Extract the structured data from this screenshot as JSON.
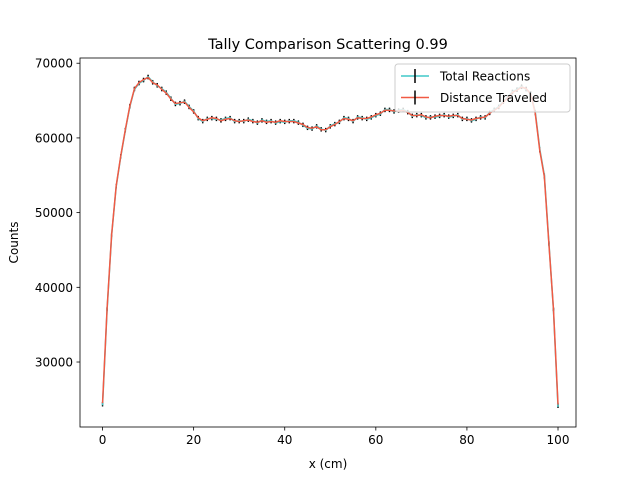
{
  "chart_data": {
    "type": "line",
    "title": "Tally Comparison Scattering 0.99",
    "xlabel": "x (cm)",
    "ylabel": "Counts",
    "xlim": [
      -4.95,
      103.95
    ],
    "ylim": [
      21300,
      70700
    ],
    "xticks": [
      0,
      20,
      40,
      60,
      80,
      100
    ],
    "yticks": [
      30000,
      40000,
      50000,
      60000,
      70000
    ],
    "grid": false,
    "legend_position": "upper right",
    "x": [
      0,
      1,
      2,
      3,
      4,
      5,
      6,
      7,
      8,
      9,
      10,
      11,
      12,
      13,
      14,
      15,
      16,
      17,
      18,
      19,
      20,
      21,
      22,
      23,
      24,
      25,
      26,
      27,
      28,
      29,
      30,
      31,
      32,
      33,
      34,
      35,
      36,
      37,
      38,
      39,
      40,
      41,
      42,
      43,
      44,
      45,
      46,
      47,
      48,
      49,
      50,
      51,
      52,
      53,
      54,
      55,
      56,
      57,
      58,
      59,
      60,
      61,
      62,
      63,
      64,
      65,
      66,
      67,
      68,
      69,
      70,
      71,
      72,
      73,
      74,
      75,
      76,
      77,
      78,
      79,
      80,
      81,
      82,
      83,
      84,
      85,
      86,
      87,
      88,
      89,
      90,
      91,
      92,
      93,
      94,
      95,
      96,
      97,
      98,
      99,
      100
    ],
    "series": [
      {
        "name": "Total Reactions",
        "color": "#40c9c9",
        "values": [
          24200,
          37000,
          47000,
          53500,
          57500,
          61000,
          64200,
          66500,
          67300,
          67700,
          68200,
          67500,
          67000,
          66600,
          66100,
          65300,
          64500,
          64600,
          64900,
          64200,
          63600,
          62600,
          62200,
          62600,
          62600,
          62500,
          62400,
          62600,
          62700,
          62200,
          62300,
          62200,
          62500,
          62300,
          62000,
          62400,
          62200,
          62300,
          62000,
          62200,
          62100,
          62300,
          62300,
          62100,
          61700,
          61300,
          61200,
          61600,
          61200,
          61000,
          61600,
          61900,
          62100,
          62700,
          62600,
          62200,
          62800,
          62700,
          62500,
          62700,
          63000,
          63200,
          63800,
          63800,
          63500,
          63700,
          63800,
          63500,
          62900,
          63100,
          63000,
          62700,
          62800,
          62800,
          62900,
          63100,
          62800,
          62900,
          63100,
          62500,
          62600,
          62300,
          62500,
          62800,
          62700,
          63400,
          63800,
          64200,
          64900,
          65500,
          66200,
          66500,
          66900,
          66500,
          66000,
          63500,
          58500,
          55000,
          46000,
          37000,
          24000
        ],
        "errors": [
          150,
          190,
          220,
          240,
          245,
          250,
          255,
          258,
          260,
          260,
          261,
          260,
          259,
          258,
          257,
          256,
          254,
          254,
          255,
          253,
          252,
          250,
          249,
          250,
          250,
          250,
          250,
          250,
          250,
          249,
          249,
          249,
          250,
          249,
          249,
          250,
          249,
          249,
          249,
          249,
          249,
          249,
          249,
          249,
          248,
          248,
          247,
          248,
          247,
          247,
          248,
          249,
          249,
          250,
          250,
          249,
          251,
          250,
          250,
          250,
          251,
          251,
          253,
          253,
          252,
          252,
          253,
          252,
          251,
          251,
          251,
          250,
          251,
          251,
          251,
          251,
          251,
          251,
          251,
          250,
          250,
          249,
          250,
          251,
          250,
          252,
          253,
          253,
          255,
          256,
          257,
          258,
          259,
          258,
          257,
          252,
          242,
          235,
          215,
          192,
          155
        ]
      },
      {
        "name": "Distance Traveled",
        "color": "#f15a44",
        "values": [
          24500,
          37200,
          47100,
          53600,
          57600,
          61100,
          64300,
          66600,
          67400,
          67800,
          68100,
          67400,
          67100,
          66500,
          66000,
          65200,
          64600,
          64700,
          64800,
          64100,
          63500,
          62700,
          62300,
          62500,
          62700,
          62600,
          62300,
          62500,
          62600,
          62300,
          62200,
          62300,
          62400,
          62200,
          62100,
          62300,
          62100,
          62200,
          62100,
          62300,
          62200,
          62200,
          62200,
          62000,
          61800,
          61400,
          61300,
          61500,
          61100,
          61100,
          61500,
          61800,
          62200,
          62600,
          62500,
          62300,
          62700,
          62600,
          62600,
          62800,
          63100,
          63300,
          63700,
          63700,
          63600,
          63600,
          63700,
          63400,
          63000,
          63000,
          63100,
          62800,
          62700,
          62900,
          63000,
          63000,
          62900,
          63000,
          63000,
          62600,
          62500,
          62400,
          62600,
          62700,
          62800,
          63300,
          63700,
          64100,
          64800,
          65400,
          66100,
          66400,
          66800,
          66600,
          65900,
          63300,
          58300,
          54800,
          45800,
          37100,
          24300
        ],
        "errors": [
          150,
          190,
          220,
          240,
          245,
          250,
          255,
          258,
          260,
          260,
          261,
          260,
          259,
          258,
          257,
          256,
          254,
          254,
          255,
          253,
          252,
          250,
          249,
          250,
          250,
          250,
          250,
          250,
          250,
          249,
          249,
          249,
          250,
          249,
          249,
          250,
          249,
          249,
          249,
          249,
          249,
          249,
          249,
          249,
          248,
          248,
          247,
          248,
          247,
          247,
          248,
          249,
          249,
          250,
          250,
          249,
          251,
          250,
          250,
          250,
          251,
          251,
          253,
          253,
          252,
          252,
          253,
          252,
          251,
          251,
          251,
          250,
          251,
          251,
          251,
          251,
          251,
          251,
          251,
          250,
          250,
          249,
          250,
          251,
          250,
          252,
          253,
          253,
          255,
          256,
          257,
          258,
          259,
          258,
          257,
          252,
          242,
          235,
          215,
          192,
          155
        ]
      }
    ]
  }
}
